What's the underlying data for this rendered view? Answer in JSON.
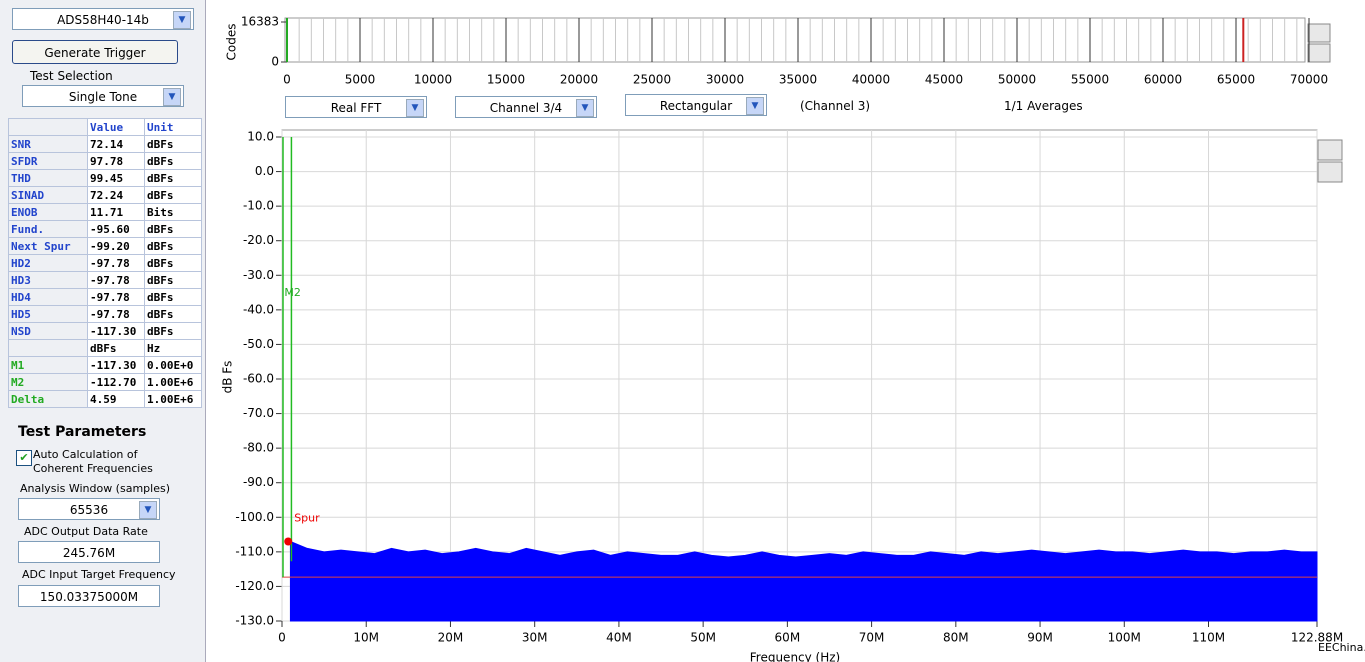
{
  "left_panel": {
    "device": "ADS58H40-14b",
    "trigger_button": "Generate Trigger",
    "test_selection_label": "Test Selection",
    "test_selection": "Single Tone",
    "results_table": {
      "header": [
        "Value",
        "Unit"
      ],
      "rows": [
        [
          "SNR",
          "72.14",
          "dBFs"
        ],
        [
          "SFDR",
          "97.78",
          "dBFs"
        ],
        [
          "THD",
          "99.45",
          "dBFs"
        ],
        [
          "SINAD",
          "72.24",
          "dBFs"
        ],
        [
          "ENOB",
          "11.71",
          "Bits"
        ],
        [
          "Fund.",
          "-95.60",
          "dBFs"
        ],
        [
          "Next Spur",
          "-99.20",
          "dBFs"
        ],
        [
          "HD2",
          "-97.78",
          "dBFs"
        ],
        [
          "HD3",
          "-97.78",
          "dBFs"
        ],
        [
          "HD4",
          "-97.78",
          "dBFs"
        ],
        [
          "HD5",
          "-97.78",
          "dBFs"
        ],
        [
          "NSD",
          "-117.30",
          "dBFs"
        ],
        [
          null,
          "dBFs",
          "Hz"
        ],
        [
          "M1",
          "-117.30",
          "0.00E+0"
        ],
        [
          "M2",
          "-112.70",
          "1.00E+6"
        ],
        [
          "Delta",
          "4.59",
          "1.00E+6"
        ]
      ]
    },
    "test_parameters": {
      "title": "Test Parameters",
      "auto_calc": "Auto Calculation of Coherent Frequencies",
      "analysis_window_label": "Analysis Window (samples)",
      "analysis_window": "65536",
      "output_rate_label": "ADC Output Data Rate",
      "output_rate": "245.76M",
      "input_freq_label": "ADC Input Target Frequency",
      "input_freq": "150.03375000M"
    }
  },
  "code_chart": {
    "type": "histogram",
    "ylabel": "Codes",
    "xlim": [
      0,
      70000
    ],
    "ylim": [
      0,
      16383
    ],
    "xticks": [
      0,
      5000,
      10000,
      15000,
      20000,
      25000,
      30000,
      35000,
      40000,
      45000,
      50000,
      55000,
      60000,
      65000,
      70000
    ],
    "yticks": [
      0,
      16383
    ],
    "markers": [
      {
        "x": 0,
        "color": "#22aa22"
      },
      {
        "x": 65500,
        "color": "#cc2222"
      }
    ]
  },
  "controls": {
    "fft_type": "Real FFT",
    "channel": "Channel 3/4",
    "window": "Rectangular",
    "channel_note": "(Channel 3)",
    "averages": "1/1 Averages"
  },
  "fft_chart": {
    "type": "area",
    "ylabel": "dB Fs",
    "xlabel": "Frequency (Hz)",
    "color": "#0000ff",
    "grid": true,
    "xlim": [
      0,
      122880000
    ],
    "ylim": [
      -130,
      10
    ],
    "xticks": [
      0,
      {
        "value": 10000000,
        "label": "10M"
      },
      {
        "value": 20000000,
        "label": "20M"
      },
      {
        "value": 30000000,
        "label": "30M"
      },
      {
        "value": 40000000,
        "label": "40M"
      },
      {
        "value": 50000000,
        "label": "50M"
      },
      {
        "value": 60000000,
        "label": "60M"
      },
      {
        "value": 70000000,
        "label": "70M"
      },
      {
        "value": 80000000,
        "label": "80M"
      },
      {
        "value": 90000000,
        "label": "90M"
      },
      {
        "value": 100000000,
        "label": "100M"
      },
      {
        "value": 110000000,
        "label": "110M"
      },
      {
        "value": 122880000,
        "label": "122.88M"
      }
    ],
    "yticks": [
      {
        "value": 10,
        "label": "10.0"
      },
      {
        "value": 0,
        "label": "0.0"
      },
      {
        "value": -10,
        "label": "-10.0"
      },
      {
        "value": -20,
        "label": "-20.0"
      },
      {
        "value": -30,
        "label": "-30.0"
      },
      {
        "value": -40,
        "label": "-40.0"
      },
      {
        "value": -50,
        "label": "-50.0"
      },
      {
        "value": -60,
        "label": "-60.0"
      },
      {
        "value": -70,
        "label": "-70.0"
      },
      {
        "value": -80,
        "label": "-80.0"
      },
      {
        "value": -90,
        "label": "-90.0"
      },
      {
        "value": -100,
        "label": "-100.0"
      },
      {
        "value": -110,
        "label": "-110.0"
      },
      {
        "value": -120,
        "label": "-120.0"
      },
      {
        "value": -130,
        "label": "-130.0"
      }
    ],
    "x": [
      1000000,
      3000000,
      5000000,
      7000000,
      9000000,
      11000000,
      13000000,
      15000000,
      17000000,
      19000000,
      21000000,
      23000000,
      25000000,
      27000000,
      29000000,
      31000000,
      33000000,
      35000000,
      37000000,
      39000000,
      41000000,
      43000000,
      45000000,
      47000000,
      49000000,
      51000000,
      53000000,
      55000000,
      57000000,
      59000000,
      61000000,
      63000000,
      65000000,
      67000000,
      69000000,
      71000000,
      73000000,
      75000000,
      77000000,
      79000000,
      81000000,
      83000000,
      85000000,
      87000000,
      89000000,
      91000000,
      93000000,
      95000000,
      97000000,
      99000000,
      101000000,
      103000000,
      105000000,
      107000000,
      109000000,
      111000000,
      113000000,
      115000000,
      117000000,
      119000000,
      121000000,
      122880000
    ],
    "values": [
      -107,
      -109,
      -110,
      -109.5,
      -110,
      -110.5,
      -109,
      -110,
      -109.5,
      -110.5,
      -110,
      -109,
      -110,
      -110.5,
      -109,
      -110,
      -111,
      -110,
      -109.5,
      -111,
      -110,
      -110.5,
      -111,
      -111,
      -110,
      -111,
      -111.5,
      -111,
      -110,
      -111,
      -111.5,
      -111,
      -110.5,
      -111,
      -110,
      -110.5,
      -111,
      -111,
      -110,
      -110.5,
      -111,
      -110,
      -110.5,
      -110,
      -109.5,
      -110,
      -110.5,
      -110,
      -109.5,
      -110,
      -110,
      -110.5,
      -110,
      -109.5,
      -110,
      -110,
      -110.5,
      -110,
      -110,
      -109.5,
      -110,
      -110
    ],
    "average_line": {
      "value": -117.3,
      "color": "#dd4444"
    },
    "markers": [
      {
        "label": "M1",
        "x": 0,
        "value": -117.3
      },
      {
        "label": "M2",
        "x": 1000000,
        "value": -112.7
      }
    ],
    "spur": {
      "label": "Spur",
      "x": 500000,
      "value": -107,
      "color": "#ee0000"
    }
  },
  "watermark": "EEChina.com"
}
